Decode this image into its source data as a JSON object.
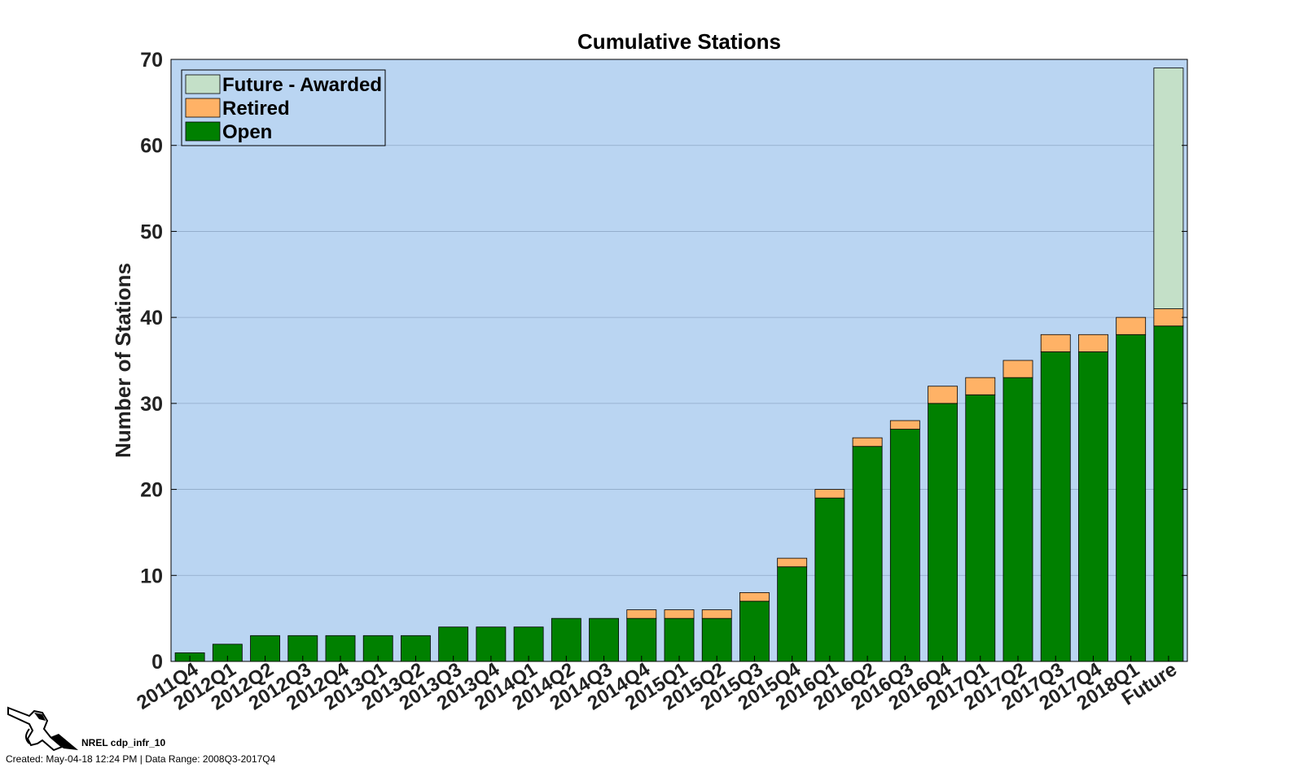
{
  "chart_data": {
    "type": "bar",
    "stacked": true,
    "title": "Cumulative Stations",
    "xlabel": "",
    "ylabel": "Number of Stations",
    "ylim": [
      0,
      70
    ],
    "yticks": [
      0,
      10,
      20,
      30,
      40,
      50,
      60,
      70
    ],
    "grid": true,
    "legend_position": "top-left",
    "categories": [
      "2011Q4",
      "2012Q1",
      "2012Q2",
      "2012Q3",
      "2012Q4",
      "2013Q1",
      "2013Q2",
      "2013Q3",
      "2013Q4",
      "2014Q1",
      "2014Q2",
      "2014Q3",
      "2014Q4",
      "2015Q1",
      "2015Q2",
      "2015Q3",
      "2015Q4",
      "2016Q1",
      "2016Q2",
      "2016Q3",
      "2016Q4",
      "2017Q1",
      "2017Q2",
      "2017Q3",
      "2017Q4",
      "2018Q1",
      "Future"
    ],
    "series": [
      {
        "name": "Open",
        "color": "#008000",
        "values": [
          1,
          2,
          3,
          3,
          3,
          3,
          3,
          4,
          4,
          4,
          5,
          5,
          5,
          5,
          5,
          7,
          11,
          19,
          25,
          27,
          30,
          31,
          33,
          36,
          36,
          38,
          39
        ]
      },
      {
        "name": "Retired",
        "color": "#ffb266",
        "values": [
          0,
          0,
          0,
          0,
          0,
          0,
          0,
          0,
          0,
          0,
          0,
          0,
          1,
          1,
          1,
          1,
          1,
          1,
          1,
          1,
          2,
          2,
          2,
          2,
          2,
          2,
          2
        ]
      },
      {
        "name": "Future - Awarded",
        "color": "#c4e0c8",
        "values": [
          0,
          0,
          0,
          0,
          0,
          0,
          0,
          0,
          0,
          0,
          0,
          0,
          0,
          0,
          0,
          0,
          0,
          0,
          0,
          0,
          0,
          0,
          0,
          0,
          0,
          0,
          28
        ]
      }
    ],
    "legend_order": [
      "Future - Awarded",
      "Retired",
      "Open"
    ],
    "plot_background": "#bad5f2"
  },
  "footer": {
    "id_text": "NREL cdp_infr_10",
    "created_text": "Created: May-04-18 12:24 PM | Data Range: 2008Q3-2017Q4"
  },
  "logo": {
    "icon": "fuel-nozzle-icon"
  }
}
